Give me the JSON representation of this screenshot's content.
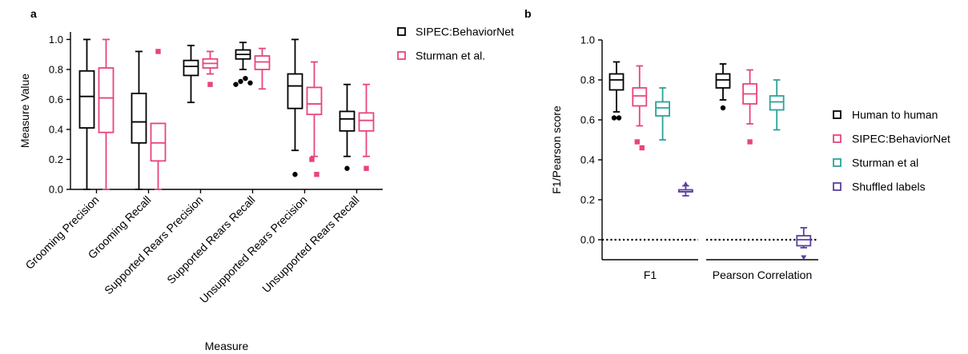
{
  "colors": {
    "black": "#000000",
    "pink": "#e8457a",
    "teal": "#2aa39b",
    "purple": "#5b3fa0"
  },
  "chart_data": [
    {
      "panel": "a",
      "type": "box",
      "xlabel": "Measure",
      "ylabel": "Measure Value",
      "ylim": [
        0,
        1.05
      ],
      "yticks": [
        "0.0",
        "0.2",
        "0.4",
        "0.6",
        "0.8",
        "1.0"
      ],
      "categories": [
        "Grooming Precision",
        "Grooming Recall",
        "Supported Rears Precision",
        "Supported Rears Recall",
        "Unsupported Rears Precision",
        "Unsupported Rears Recall"
      ],
      "series": [
        {
          "name": "SIPEC:BehaviorNet",
          "color": "black",
          "boxes": [
            {
              "min": 0.0,
              "q1": 0.41,
              "median": 0.62,
              "q3": 0.79,
              "max": 1.0,
              "outliers": []
            },
            {
              "min": 0.0,
              "q1": 0.31,
              "median": 0.45,
              "q3": 0.64,
              "max": 0.92,
              "outliers": []
            },
            {
              "min": 0.58,
              "q1": 0.76,
              "median": 0.82,
              "q3": 0.86,
              "max": 0.96,
              "outliers": []
            },
            {
              "min": 0.8,
              "q1": 0.87,
              "median": 0.9,
              "q3": 0.93,
              "max": 0.98,
              "outliers": [
                0.7,
                0.72,
                0.74,
                0.71
              ]
            },
            {
              "min": 0.26,
              "q1": 0.54,
              "median": 0.69,
              "q3": 0.77,
              "max": 1.0,
              "outliers": [
                0.1
              ]
            },
            {
              "min": 0.22,
              "q1": 0.39,
              "median": 0.47,
              "q3": 0.52,
              "max": 0.7,
              "outliers": [
                0.14
              ]
            }
          ]
        },
        {
          "name": "Sturman et al.",
          "color": "pink",
          "boxes": [
            {
              "min": 0.0,
              "q1": 0.38,
              "median": 0.61,
              "q3": 0.81,
              "max": 1.0,
              "outliers": []
            },
            {
              "min": 0.0,
              "q1": 0.19,
              "median": 0.31,
              "q3": 0.44,
              "max": 0.44,
              "outliers": [
                0.92
              ]
            },
            {
              "min": 0.77,
              "q1": 0.81,
              "median": 0.84,
              "q3": 0.87,
              "max": 0.92,
              "outliers": [
                0.7
              ]
            },
            {
              "min": 0.67,
              "q1": 0.8,
              "median": 0.85,
              "q3": 0.89,
              "max": 0.94,
              "outliers": []
            },
            {
              "min": 0.22,
              "q1": 0.5,
              "median": 0.57,
              "q3": 0.68,
              "max": 0.85,
              "outliers": [
                0.2,
                0.1
              ]
            },
            {
              "min": 0.22,
              "q1": 0.39,
              "median": 0.46,
              "q3": 0.51,
              "max": 0.7,
              "outliers": [
                0.14
              ]
            }
          ]
        }
      ]
    },
    {
      "panel": "b",
      "type": "box",
      "xlabel": "",
      "ylabel": "F1/Pearson score",
      "ylim": [
        -0.1,
        1.0
      ],
      "yticks": [
        "0.0",
        "0.2",
        "0.4",
        "0.6",
        "0.8",
        "1.0"
      ],
      "reference_line": 0.0,
      "categories": [
        "F1",
        "Pearson Correlation"
      ],
      "series": [
        {
          "name": "Human to human",
          "color": "black",
          "boxes": [
            {
              "min": 0.64,
              "q1": 0.75,
              "median": 0.8,
              "q3": 0.83,
              "max": 0.89,
              "outliers": [
                0.61,
                0.61
              ]
            },
            {
              "min": 0.7,
              "q1": 0.76,
              "median": 0.8,
              "q3": 0.83,
              "max": 0.88,
              "outliers": [
                0.66
              ]
            }
          ]
        },
        {
          "name": "SIPEC:BehaviorNet",
          "color": "pink",
          "boxes": [
            {
              "min": 0.57,
              "q1": 0.67,
              "median": 0.72,
              "q3": 0.76,
              "max": 0.87,
              "outliers": [
                0.49,
                0.46
              ]
            },
            {
              "min": 0.58,
              "q1": 0.68,
              "median": 0.73,
              "q3": 0.78,
              "max": 0.85,
              "outliers": [
                0.49
              ]
            }
          ]
        },
        {
          "name": "Sturman et al",
          "color": "teal",
          "boxes": [
            {
              "min": 0.5,
              "q1": 0.62,
              "median": 0.66,
              "q3": 0.69,
              "max": 0.76,
              "outliers": []
            },
            {
              "min": 0.55,
              "q1": 0.65,
              "median": 0.69,
              "q3": 0.72,
              "max": 0.8,
              "outliers": []
            }
          ]
        },
        {
          "name": "Shuffled labels",
          "color": "purple",
          "boxes": [
            {
              "min": 0.22,
              "q1": 0.24,
              "median": 0.24,
              "q3": 0.25,
              "max": 0.27,
              "outliers": [
                0.28
              ]
            },
            {
              "min": -0.04,
              "q1": -0.03,
              "median": 0.0,
              "q3": 0.02,
              "max": 0.06,
              "outliers": [
                -0.09
              ]
            }
          ]
        }
      ]
    }
  ]
}
